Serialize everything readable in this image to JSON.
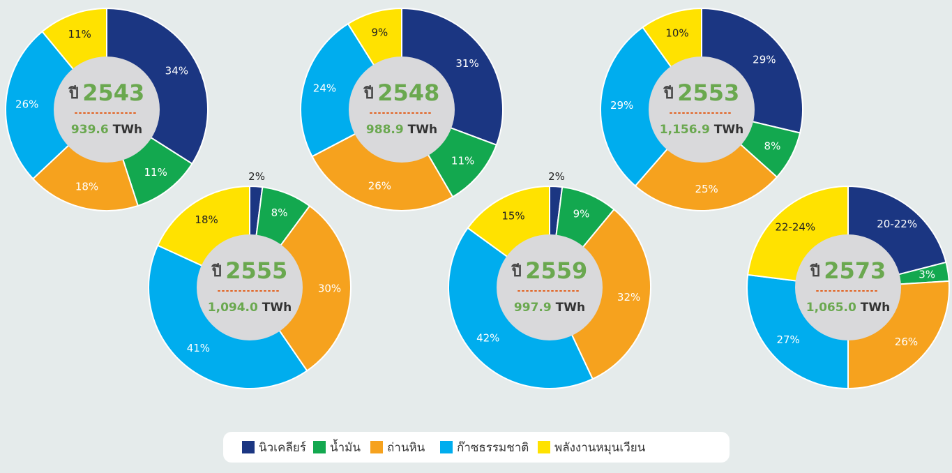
{
  "chart_data": [
    {
      "type": "pie",
      "donut": true,
      "prefix": "ปี",
      "year": "2543",
      "total": "939.6",
      "unit": "TWh",
      "values": [
        34,
        11,
        18,
        26,
        11
      ]
    },
    {
      "type": "pie",
      "donut": true,
      "prefix": "ปี",
      "year": "2548",
      "total": "988.9",
      "unit": "TWh",
      "values": [
        31,
        11,
        26,
        24,
        9
      ]
    },
    {
      "type": "pie",
      "donut": true,
      "prefix": "ปี",
      "year": "2553",
      "total": "1,156.9",
      "unit": "TWh",
      "values": [
        29,
        8,
        25,
        29,
        10
      ]
    },
    {
      "type": "pie",
      "donut": true,
      "prefix": "ปี",
      "year": "2555",
      "total": "1,094.0",
      "unit": "TWh",
      "values": [
        2,
        8,
        30,
        41,
        18
      ]
    },
    {
      "type": "pie",
      "donut": true,
      "prefix": "ปี",
      "year": "2559",
      "total": "997.9",
      "unit": "TWh",
      "values": [
        2,
        9,
        32,
        42,
        15
      ]
    },
    {
      "type": "pie",
      "donut": true,
      "prefix": "ปี",
      "year": "2573",
      "total": "1,065.0",
      "unit": "TWh",
      "values": [
        21,
        3,
        26,
        27,
        23
      ],
      "value_labels": [
        "20-22%",
        "3%",
        "26%",
        "27%",
        "22-24%"
      ]
    }
  ],
  "legend": {
    "labels": [
      "นิวเคลียร์",
      "น้ำมัน",
      "ถ่านหิน",
      "ก๊าซธรรมชาติ",
      "พลังงานหมุนเวียน"
    ],
    "colors": [
      "#1b3682",
      "#13a84f",
      "#f6a21e",
      "#00adee",
      "#ffe200"
    ],
    "unit_suffix": "%"
  }
}
